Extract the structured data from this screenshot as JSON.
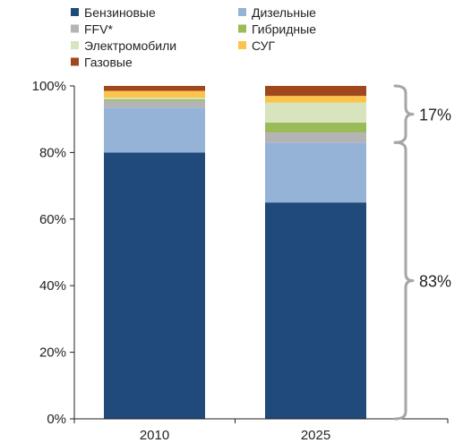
{
  "chart_data": {
    "type": "bar",
    "stacked": true,
    "categories": [
      "2010",
      "2025"
    ],
    "series": [
      {
        "name": "Бензиновые",
        "color": "#1f4a7a",
        "values": [
          80.0,
          65.0
        ]
      },
      {
        "name": "Дизельные",
        "color": "#95b3d7",
        "values": [
          13.5,
          18.0
        ]
      },
      {
        "name": "FFV*",
        "color": "#b4b4b4",
        "values": [
          2.0,
          3.0
        ]
      },
      {
        "name": "Гибридные",
        "color": "#9bbb59",
        "values": [
          0.5,
          3.0
        ]
      },
      {
        "name": "Электромобили",
        "color": "#d7e4bd",
        "values": [
          0.5,
          6.0
        ]
      },
      {
        "name": "СУГ",
        "color": "#fcc34d",
        "values": [
          2.0,
          2.0
        ]
      },
      {
        "name": "Газовые",
        "color": "#a0471e",
        "values": [
          1.5,
          3.0
        ]
      }
    ],
    "ylim": [
      0,
      100
    ],
    "y_ticks": [
      "0%",
      "20%",
      "40%",
      "60%",
      "80%",
      "100%"
    ],
    "y_tick_values": [
      0,
      20,
      40,
      60,
      80,
      100
    ],
    "xlabel": "",
    "ylabel": "",
    "legend_position": "top",
    "grid": false,
    "annotations": [
      {
        "label": "17%",
        "range": [
          83,
          100
        ]
      },
      {
        "label": "83%",
        "range": [
          0,
          83
        ]
      }
    ],
    "annotation_color": "#a6a6a6"
  }
}
